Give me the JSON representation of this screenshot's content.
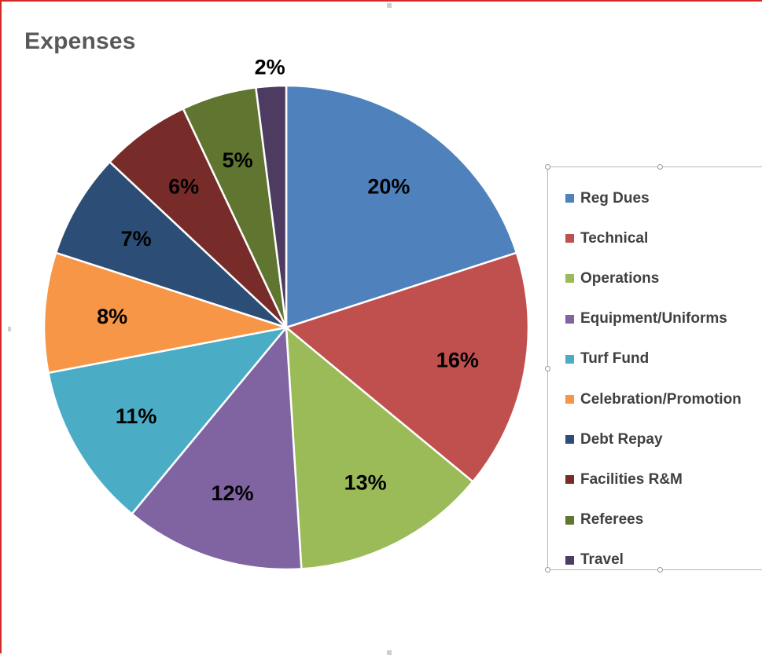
{
  "chart_data": {
    "type": "pie",
    "title": "Expenses",
    "categories": [
      "Reg Dues",
      "Technical",
      "Operations",
      "Equipment/Uniforms",
      "Turf Fund",
      "Celebration/Promotion",
      "Debt Repay",
      "Facilities R&M",
      "Referees",
      "Travel"
    ],
    "values": [
      20,
      16,
      13,
      12,
      11,
      8,
      7,
      6,
      5,
      2
    ],
    "data_labels": [
      "20%",
      "16%",
      "13%",
      "12%",
      "11%",
      "8%",
      "7%",
      "6%",
      "5%",
      "2%"
    ],
    "colors": [
      "#4f81bd",
      "#c0504d",
      "#9bbb59",
      "#8064a2",
      "#4bacc6",
      "#f79646",
      "#2c4d75",
      "#772c2a",
      "#5f7530",
      "#4d3b62"
    ],
    "legend_position": "right"
  }
}
